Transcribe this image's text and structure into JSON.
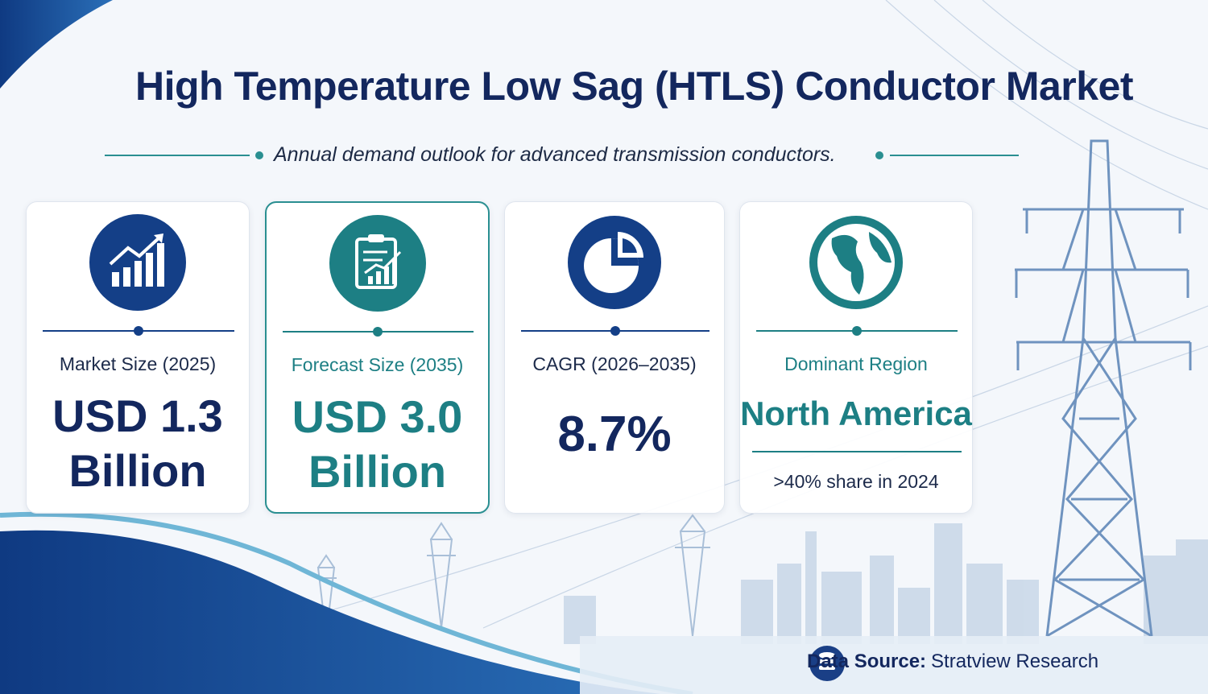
{
  "header": {
    "title": "High Temperature Low Sag (HTLS) Conductor Market",
    "subtitle": "Annual demand outlook for advanced transmission conductors."
  },
  "cards": [
    {
      "label": "Market Size (2025)",
      "value": "USD 1.3 Billion"
    },
    {
      "label": "Forecast Size (2035)",
      "value": "USD 3.0 Billion"
    },
    {
      "label": "CAGR (2026–2035)",
      "value": "8.7%"
    },
    {
      "label": "Dominant Region",
      "value": "North America",
      "note": ">40% share in 2024"
    }
  ],
  "footer": {
    "label": "Data Source:",
    "source": "Stratview Research"
  }
}
